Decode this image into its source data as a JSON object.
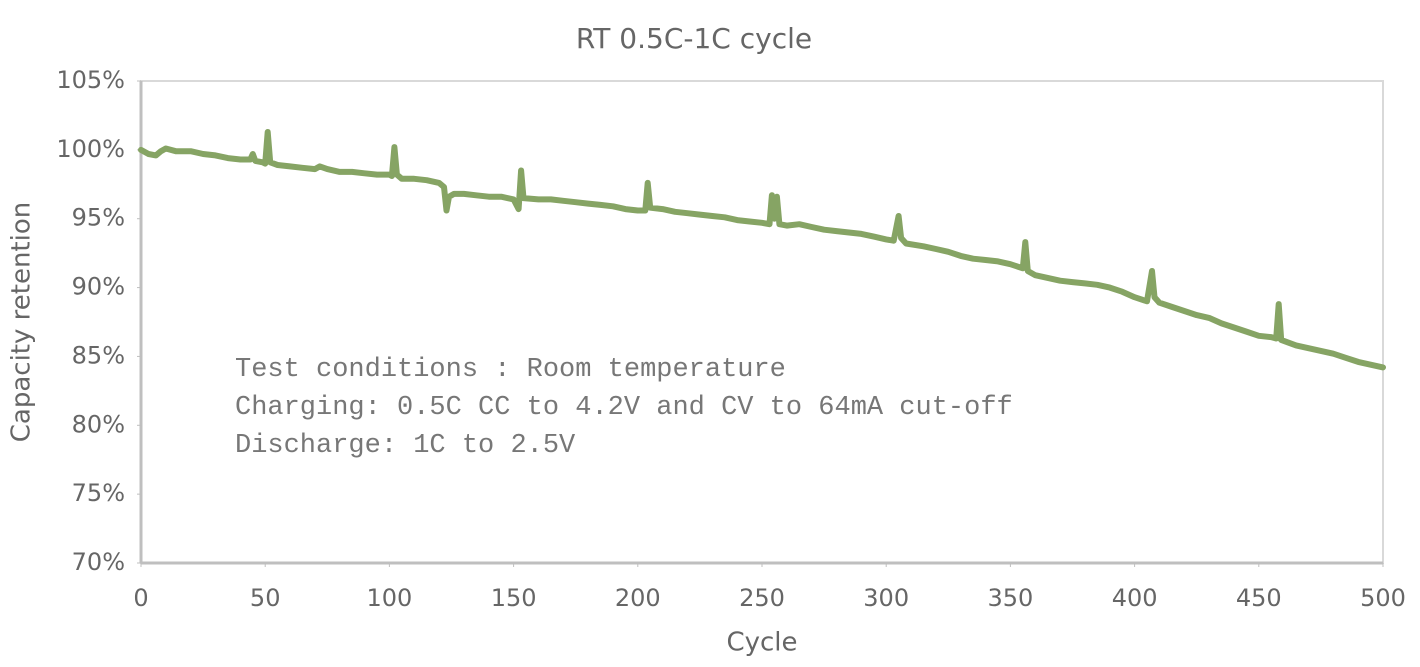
{
  "chart_data": {
    "type": "line",
    "title": "RT 0.5C-1C cycle",
    "x_label": "Cycle",
    "y_label": "Capacity retention",
    "annotations": [
      "Test conditions : Room temperature",
      "Charging: 0.5C CC to 4.2V and CV to 64mA cut-off",
      "Discharge: 1C to 2.5V"
    ],
    "x": [
      0,
      3,
      6,
      8,
      10,
      14,
      20,
      25,
      30,
      35,
      40,
      44,
      45,
      46,
      49,
      50,
      51,
      52,
      55,
      60,
      65,
      70,
      72,
      75,
      80,
      85,
      90,
      95,
      100,
      101,
      102,
      103,
      105,
      110,
      115,
      120,
      122,
      123,
      124,
      126,
      130,
      135,
      140,
      145,
      150,
      152,
      153,
      154,
      160,
      165,
      170,
      175,
      180,
      185,
      190,
      195,
      200,
      203,
      204,
      205,
      210,
      215,
      220,
      225,
      230,
      235,
      240,
      245,
      250,
      253,
      254,
      255,
      256,
      257,
      260,
      265,
      270,
      275,
      280,
      285,
      290,
      295,
      300,
      303,
      305,
      306,
      308,
      315,
      320,
      325,
      330,
      335,
      340,
      345,
      350,
      355,
      356,
      357,
      360,
      365,
      370,
      375,
      380,
      385,
      390,
      395,
      400,
      405,
      407,
      408,
      410,
      415,
      420,
      425,
      430,
      435,
      440,
      445,
      450,
      455,
      457,
      458,
      459,
      462,
      465,
      470,
      475,
      480,
      485,
      490,
      495,
      500
    ],
    "series": [
      {
        "name": "Capacity retention",
        "color": "#86a464",
        "values": [
          100.0,
          99.7,
          99.6,
          99.9,
          100.1,
          99.9,
          99.9,
          99.7,
          99.6,
          99.4,
          99.3,
          99.3,
          99.7,
          99.2,
          99.1,
          99.0,
          101.3,
          99.1,
          98.9,
          98.8,
          98.7,
          98.6,
          98.8,
          98.6,
          98.4,
          98.4,
          98.3,
          98.2,
          98.2,
          98.1,
          100.2,
          98.2,
          97.9,
          97.9,
          97.8,
          97.6,
          97.3,
          95.6,
          96.6,
          96.8,
          96.8,
          96.7,
          96.6,
          96.6,
          96.4,
          95.7,
          98.5,
          96.5,
          96.4,
          96.4,
          96.3,
          96.2,
          96.1,
          96.0,
          95.9,
          95.7,
          95.6,
          95.6,
          97.6,
          95.8,
          95.7,
          95.5,
          95.4,
          95.3,
          95.2,
          95.1,
          94.9,
          94.8,
          94.7,
          94.6,
          96.7,
          95.0,
          96.6,
          94.6,
          94.5,
          94.6,
          94.4,
          94.2,
          94.1,
          94.0,
          93.9,
          93.7,
          93.5,
          93.4,
          95.2,
          93.6,
          93.2,
          93.0,
          92.8,
          92.6,
          92.3,
          92.1,
          92.0,
          91.9,
          91.7,
          91.4,
          93.3,
          91.2,
          90.9,
          90.7,
          90.5,
          90.4,
          90.3,
          90.2,
          90.0,
          89.7,
          89.3,
          89.0,
          91.2,
          89.3,
          88.9,
          88.6,
          88.3,
          88.0,
          87.8,
          87.4,
          87.1,
          86.8,
          86.5,
          86.4,
          86.3,
          88.8,
          86.2,
          86.0,
          85.8,
          85.6,
          85.4,
          85.2,
          84.9,
          84.6,
          84.4,
          84.2
        ]
      }
    ],
    "xlim": [
      0,
      500
    ],
    "xticks": [
      0,
      50,
      100,
      150,
      200,
      250,
      300,
      350,
      400,
      450,
      500
    ],
    "ylim": [
      70,
      105
    ],
    "yticks": [
      {
        "value": 70,
        "label": "70%"
      },
      {
        "value": 75,
        "label": "75%"
      },
      {
        "value": 80,
        "label": "80%"
      },
      {
        "value": 85,
        "label": "85%"
      },
      {
        "value": 90,
        "label": "90%"
      },
      {
        "value": 95,
        "label": "95%"
      },
      {
        "value": 100,
        "label": "100%"
      },
      {
        "value": 105,
        "label": "105%"
      }
    ],
    "grid": false
  }
}
